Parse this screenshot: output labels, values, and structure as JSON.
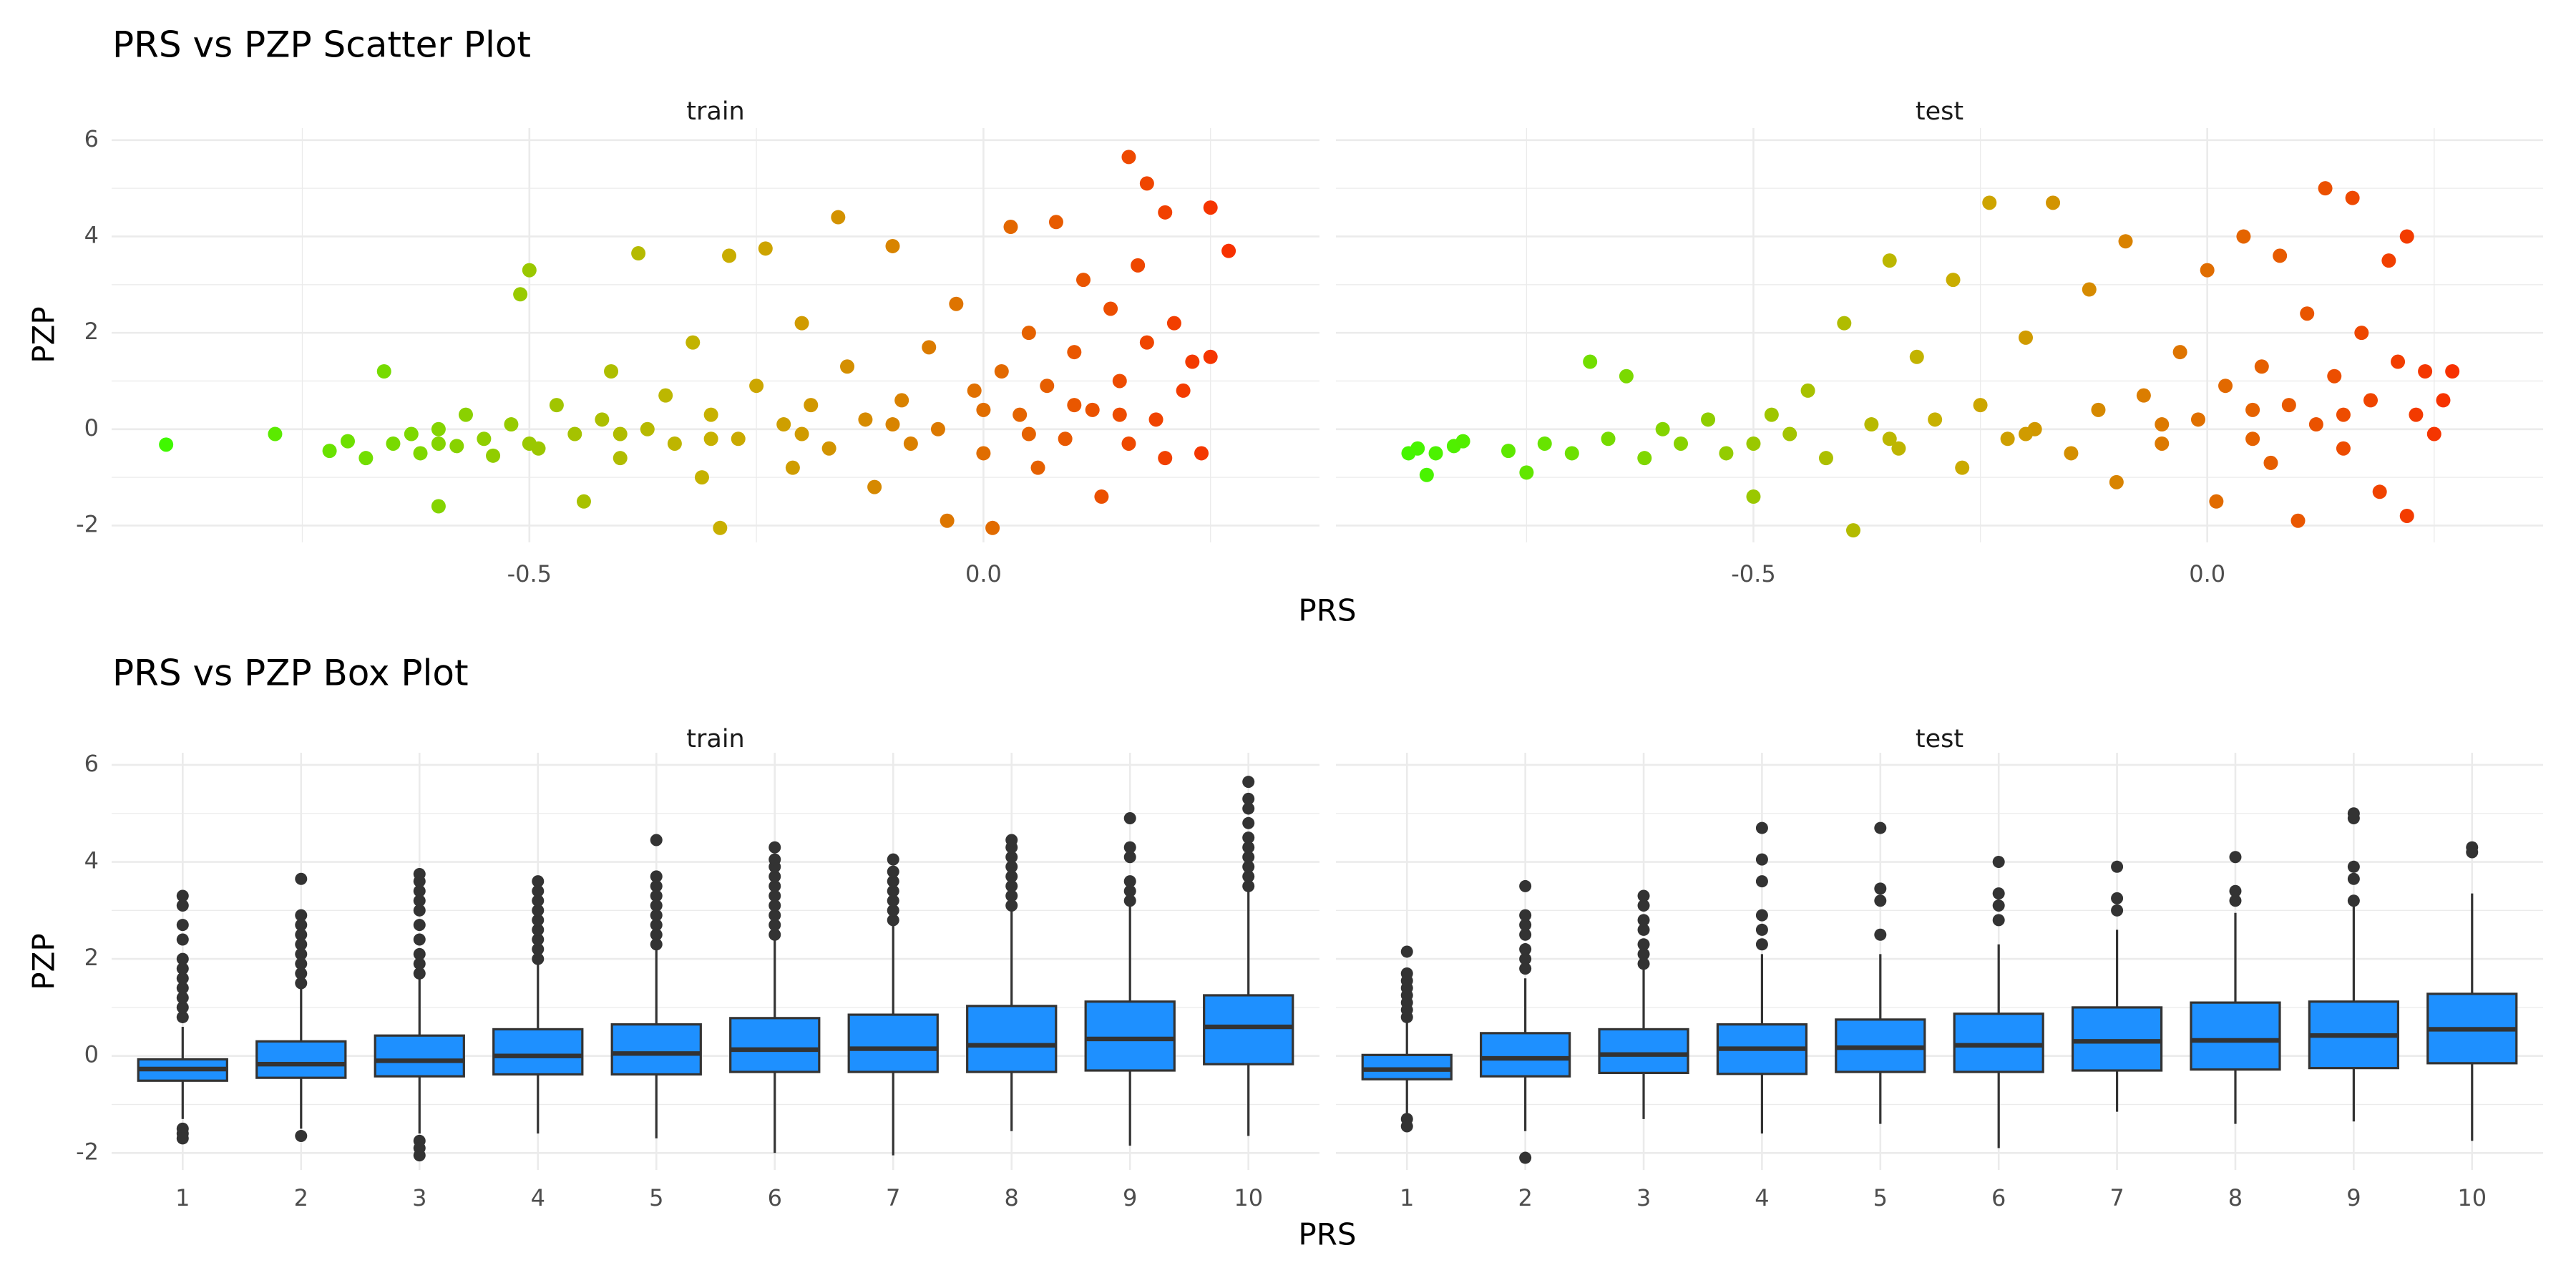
{
  "chart_data": [
    {
      "type": "scatter",
      "title": "PRS vs PZP Scatter Plot",
      "x_label": "PRS",
      "y_label": "PZP",
      "xlim": [
        -0.96,
        0.37
      ],
      "xticks": [
        -0.5,
        {
          "value": 0,
          "label": "0.0"
        }
      ],
      "ylim": [
        -2.35,
        6.25
      ],
      "yticks": [
        -2,
        0,
        2,
        4,
        6
      ],
      "grid": true,
      "minor_grid": true,
      "color_scale": [
        "#33ff00",
        "#c8b000",
        "#ff1a00"
      ],
      "series": [
        {
          "name": "train",
          "x": [
            -0.9,
            -0.78,
            -0.72,
            -0.7,
            -0.68,
            -0.66,
            -0.65,
            -0.63,
            -0.62,
            -0.6,
            -0.6,
            -0.58,
            -0.57,
            -0.55,
            -0.54,
            -0.52,
            -0.51,
            -0.5,
            -0.49,
            -0.47,
            -0.45,
            -0.44,
            -0.42,
            -0.41,
            -0.4,
            -0.38,
            -0.37,
            -0.35,
            -0.34,
            -0.32,
            -0.31,
            -0.3,
            -0.29,
            -0.28,
            -0.27,
            -0.25,
            -0.24,
            -0.22,
            -0.21,
            -0.2,
            -0.19,
            -0.17,
            -0.16,
            -0.15,
            -0.13,
            -0.12,
            -0.1,
            -0.09,
            -0.08,
            -0.06,
            -0.05,
            -0.04,
            -0.03,
            -0.01,
            0.0,
            0.01,
            0.02,
            0.03,
            0.04,
            0.05,
            0.06,
            0.07,
            0.08,
            0.09,
            0.1,
            0.11,
            0.12,
            0.13,
            0.14,
            0.15,
            0.16,
            0.16,
            0.17,
            0.18,
            0.18,
            0.19,
            0.2,
            0.2,
            0.21,
            0.22,
            0.23,
            0.24,
            0.25,
            0.25,
            0.27,
            -0.1,
            0.0,
            0.1,
            -0.2,
            -0.3,
            -0.4,
            -0.5,
            -0.6,
            0.15,
            0.05
          ],
          "values": [
            -0.32,
            -0.1,
            -0.45,
            -0.25,
            -0.6,
            1.2,
            -0.3,
            -0.1,
            -0.5,
            0.0,
            -1.6,
            -0.35,
            0.3,
            -0.2,
            -0.55,
            0.1,
            2.8,
            3.3,
            -0.4,
            0.5,
            -0.1,
            -1.5,
            0.2,
            1.2,
            -0.6,
            3.65,
            0.0,
            0.7,
            -0.3,
            1.8,
            -1.0,
            0.3,
            -2.05,
            3.6,
            -0.2,
            0.9,
            3.75,
            0.1,
            -0.8,
            2.2,
            0.5,
            -0.4,
            4.4,
            1.3,
            0.2,
            -1.2,
            3.8,
            0.6,
            -0.3,
            1.7,
            0.0,
            -1.9,
            2.6,
            0.8,
            -0.5,
            -2.05,
            1.2,
            4.2,
            0.3,
            2.0,
            -0.8,
            0.9,
            4.3,
            -0.2,
            1.6,
            3.1,
            0.4,
            -1.4,
            2.5,
            1.0,
            5.65,
            -0.3,
            3.4,
            5.1,
            1.8,
            0.2,
            4.5,
            -0.6,
            2.2,
            0.8,
            1.4,
            -0.5,
            4.6,
            1.5,
            3.7,
            0.1,
            0.4,
            0.5,
            -0.1,
            -0.2,
            -0.1,
            -0.3,
            -0.3,
            0.3,
            -0.1
          ]
        },
        {
          "name": "test",
          "x": [
            -0.88,
            -0.87,
            -0.86,
            -0.85,
            -0.83,
            -0.82,
            -0.77,
            -0.75,
            -0.73,
            -0.7,
            -0.68,
            -0.66,
            -0.64,
            -0.62,
            -0.6,
            -0.58,
            -0.55,
            -0.53,
            -0.5,
            -0.48,
            -0.46,
            -0.44,
            -0.42,
            -0.4,
            -0.39,
            -0.37,
            -0.35,
            -0.34,
            -0.32,
            -0.3,
            -0.28,
            -0.27,
            -0.25,
            -0.24,
            -0.22,
            -0.2,
            -0.19,
            -0.17,
            -0.15,
            -0.13,
            -0.12,
            -0.1,
            -0.09,
            -0.07,
            -0.05,
            -0.03,
            -0.01,
            0.0,
            0.01,
            0.02,
            0.04,
            0.05,
            0.06,
            0.07,
            0.08,
            0.09,
            0.1,
            0.11,
            0.12,
            0.13,
            0.14,
            0.15,
            0.16,
            0.17,
            0.18,
            0.19,
            0.2,
            0.21,
            0.22,
            0.22,
            0.23,
            0.24,
            0.25,
            0.26,
            0.27,
            -0.05,
            0.05,
            -0.2,
            -0.35,
            -0.5,
            0.15
          ],
          "values": [
            -0.5,
            -0.4,
            -0.95,
            -0.5,
            -0.35,
            -0.25,
            -0.45,
            -0.9,
            -0.3,
            -0.5,
            1.4,
            -0.2,
            1.1,
            -0.6,
            0.0,
            -0.3,
            0.2,
            -0.5,
            -1.4,
            0.3,
            -0.1,
            0.8,
            -0.6,
            2.2,
            -2.1,
            0.1,
            3.5,
            -0.4,
            1.5,
            0.2,
            3.1,
            -0.8,
            0.5,
            4.7,
            -0.2,
            1.9,
            0.0,
            4.7,
            -0.5,
            2.9,
            0.4,
            -1.1,
            3.9,
            0.7,
            -0.3,
            1.6,
            0.2,
            3.3,
            -1.5,
            0.9,
            4.0,
            -0.2,
            1.3,
            -0.7,
            3.6,
            0.5,
            -1.9,
            2.4,
            0.1,
            5.0,
            1.1,
            -0.4,
            4.8,
            2.0,
            0.6,
            -1.3,
            3.5,
            1.4,
            4.0,
            -1.8,
            0.3,
            1.2,
            -0.1,
            0.6,
            1.2,
            0.1,
            0.4,
            -0.1,
            -0.2,
            -0.3,
            0.3
          ]
        }
      ]
    },
    {
      "type": "box",
      "title": "PRS vs PZP Box Plot",
      "x_label": "PRS",
      "y_label": "PZP",
      "categories": [
        "1",
        "2",
        "3",
        "4",
        "5",
        "6",
        "7",
        "8",
        "9",
        "10"
      ],
      "ylim": [
        -2.35,
        6.25
      ],
      "yticks": [
        -2,
        0,
        2,
        4,
        6
      ],
      "grid": true,
      "minor_grid": true,
      "color": "#1e90ff",
      "line_color": "#333333",
      "series": [
        {
          "name": "train",
          "whisker_low": [
            -1.3,
            -1.5,
            -1.6,
            -1.6,
            -1.7,
            -2.0,
            -2.05,
            -1.55,
            -1.85,
            -1.65
          ],
          "q1": [
            -0.51,
            -0.45,
            -0.42,
            -0.38,
            -0.38,
            -0.33,
            -0.33,
            -0.33,
            -0.3,
            -0.17
          ],
          "median": [
            -0.27,
            -0.17,
            -0.1,
            0.0,
            0.05,
            0.13,
            0.15,
            0.22,
            0.35,
            0.6
          ],
          "q3": [
            -0.07,
            0.3,
            0.42,
            0.55,
            0.65,
            0.78,
            0.85,
            1.03,
            1.12,
            1.25
          ],
          "whisker_high": [
            0.6,
            1.4,
            1.6,
            1.9,
            2.2,
            2.4,
            2.7,
            3.0,
            3.1,
            3.4
          ],
          "outliers": [
            [
              0.8,
              1.0,
              1.2,
              1.4,
              1.6,
              1.8,
              2.0,
              2.4,
              2.7,
              3.1,
              3.3,
              -1.5,
              -1.6,
              -1.7
            ],
            [
              1.5,
              1.7,
              1.9,
              2.1,
              2.3,
              2.5,
              2.7,
              2.9,
              3.65,
              -1.65
            ],
            [
              1.7,
              1.9,
              2.1,
              2.4,
              2.7,
              3.0,
              3.2,
              3.4,
              3.6,
              3.75,
              -1.75,
              -1.9,
              -2.05
            ],
            [
              2.0,
              2.2,
              2.4,
              2.6,
              2.8,
              3.0,
              3.2,
              3.4,
              3.6
            ],
            [
              2.3,
              2.5,
              2.7,
              2.9,
              3.1,
              3.3,
              3.5,
              3.7,
              4.45
            ],
            [
              2.5,
              2.7,
              2.9,
              3.1,
              3.3,
              3.5,
              3.7,
              3.9,
              4.05,
              4.3
            ],
            [
              2.8,
              3.0,
              3.2,
              3.4,
              3.6,
              3.8,
              4.05
            ],
            [
              3.1,
              3.3,
              3.5,
              3.7,
              3.9,
              4.1,
              4.3,
              4.45
            ],
            [
              3.2,
              3.4,
              3.6,
              4.1,
              4.3,
              4.9
            ],
            [
              3.5,
              3.7,
              3.9,
              4.1,
              4.3,
              4.5,
              4.8,
              5.1,
              5.3,
              5.65
            ]
          ]
        },
        {
          "name": "test",
          "whisker_low": [
            -1.2,
            -1.55,
            -1.3,
            -1.6,
            -1.4,
            -1.9,
            -1.15,
            -1.4,
            -1.35,
            -1.75
          ],
          "q1": [
            -0.48,
            -0.42,
            -0.35,
            -0.37,
            -0.33,
            -0.33,
            -0.3,
            -0.28,
            -0.25,
            -0.15
          ],
          "median": [
            -0.28,
            -0.05,
            0.03,
            0.15,
            0.17,
            0.22,
            0.3,
            0.32,
            0.42,
            0.55
          ],
          "q3": [
            0.02,
            0.47,
            0.55,
            0.65,
            0.75,
            0.87,
            1.0,
            1.1,
            1.12,
            1.28
          ],
          "whisker_high": [
            0.7,
            1.6,
            1.8,
            2.1,
            2.1,
            2.3,
            2.6,
            2.95,
            3.1,
            3.35
          ],
          "outliers": [
            [
              0.8,
              0.95,
              1.1,
              1.25,
              1.4,
              1.55,
              1.7,
              2.15,
              -1.3,
              -1.45
            ],
            [
              1.8,
              2.0,
              2.2,
              2.5,
              2.7,
              2.9,
              3.5,
              -2.1
            ],
            [
              1.9,
              2.1,
              2.3,
              2.6,
              2.8,
              3.1,
              3.3
            ],
            [
              2.3,
              2.6,
              2.9,
              3.6,
              4.05,
              4.7
            ],
            [
              2.5,
              3.2,
              3.45,
              4.7
            ],
            [
              2.8,
              3.1,
              3.35,
              4.0
            ],
            [
              3.0,
              3.25,
              3.9
            ],
            [
              3.2,
              3.4,
              4.1
            ],
            [
              3.2,
              3.65,
              3.9,
              4.9,
              5.0
            ],
            [
              4.2,
              4.3
            ]
          ]
        }
      ]
    }
  ]
}
